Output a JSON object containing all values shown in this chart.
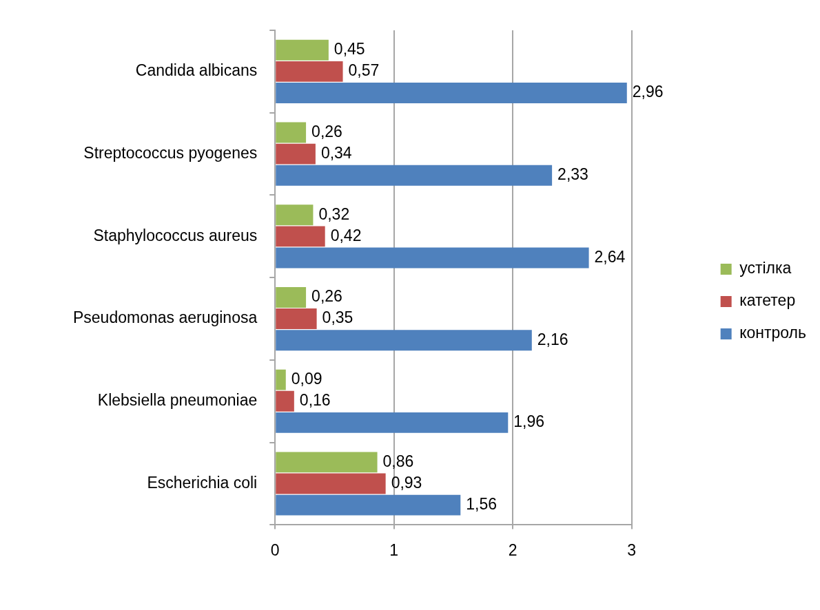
{
  "chart_data": {
    "type": "bar",
    "orientation": "horizontal",
    "categories": [
      "Candida albicans",
      "Streptococcus pyogenes",
      "Staphylococcus aureus",
      "Pseudomonas aeruginosa",
      "Klebsiella pneumoniae",
      "Escherichia coli"
    ],
    "series": [
      {
        "name": "устілка",
        "color": "#9bbb59",
        "values": [
          0.45,
          0.26,
          0.32,
          0.26,
          0.09,
          0.86
        ],
        "value_labels": [
          "0,45",
          "0,26",
          "0,32",
          "0,26",
          "0,09",
          "0,86"
        ]
      },
      {
        "name": "катетер",
        "color": "#c0504d",
        "values": [
          0.57,
          0.34,
          0.42,
          0.35,
          0.16,
          0.93
        ],
        "value_labels": [
          "0,57",
          "0,34",
          "0,42",
          "0,35",
          "0,16",
          "0,93"
        ]
      },
      {
        "name": "контроль",
        "color": "#4f81bd",
        "values": [
          2.96,
          2.33,
          2.64,
          2.16,
          1.96,
          1.56
        ],
        "value_labels": [
          "2,96",
          "2,33",
          "2,64",
          "2,16",
          "1,96",
          "1,56"
        ]
      }
    ],
    "xlim": [
      0,
      3
    ],
    "xticks": [
      0,
      1,
      2,
      3
    ],
    "grid": "x",
    "legend": "right"
  }
}
